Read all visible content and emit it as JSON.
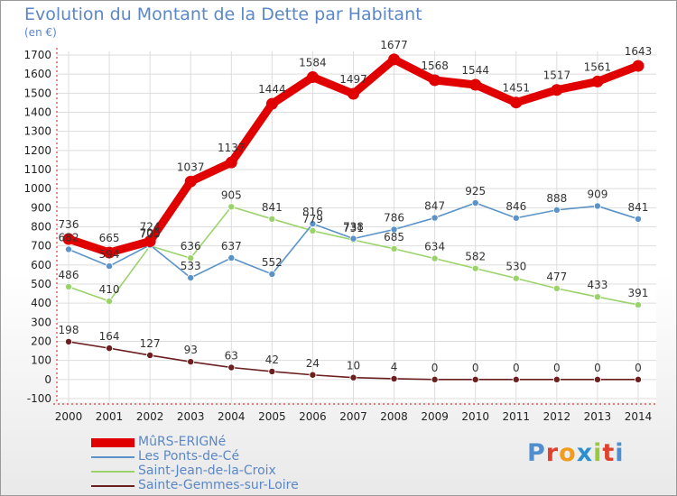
{
  "title": "Evolution du Montant de la Dette par Habitant",
  "unit_label": "(en €)",
  "logo_text": "Proxiti",
  "logo_colors": [
    "#4f8fd0",
    "#e0412d",
    "#f29b1d",
    "#2e8fd0",
    "#9ac93b",
    "#e0412d",
    "#4f8fd0"
  ],
  "chart_data": {
    "type": "line",
    "title": "Evolution du Montant de la Dette par Habitant",
    "ylabel": "(en €)",
    "xlabel": "",
    "x": [
      "2000",
      "2001",
      "2002",
      "2003",
      "2004",
      "2005",
      "2006",
      "2007",
      "2008",
      "2009",
      "2010",
      "2011",
      "2012",
      "2013",
      "2014"
    ],
    "ylim": [
      -100,
      1700
    ],
    "yticks": [
      -100,
      0,
      100,
      200,
      300,
      400,
      500,
      600,
      700,
      800,
      900,
      1000,
      1100,
      1200,
      1300,
      1400,
      1500,
      1600,
      1700
    ],
    "grid": true,
    "legend_position": "bottom-left",
    "series": [
      {
        "name": "MûRS-ERIGNé",
        "color": "#e00000",
        "values": [
          736,
          665,
          724,
          1037,
          1137,
          1444,
          1584,
          1497,
          1677,
          1568,
          1544,
          1451,
          1517,
          1561,
          1643
        ]
      },
      {
        "name": "Les Ponts-de-Cé",
        "color": "#5b93c9",
        "values": [
          682,
          594,
          705,
          533,
          637,
          552,
          816,
          738,
          786,
          847,
          925,
          846,
          888,
          909,
          841
        ]
      },
      {
        "name": "Saint-Jean-de-la-Croix",
        "color": "#9bd36b",
        "values": [
          486,
          410,
          700,
          636,
          905,
          841,
          779,
          731,
          685,
          634,
          582,
          530,
          477,
          433,
          391
        ]
      },
      {
        "name": "Sainte-Gemmes-sur-Loire",
        "color": "#6b1f1f",
        "values": [
          198,
          164,
          127,
          93,
          63,
          42,
          24,
          10,
          4,
          0,
          0,
          0,
          0,
          0,
          0
        ]
      }
    ]
  }
}
